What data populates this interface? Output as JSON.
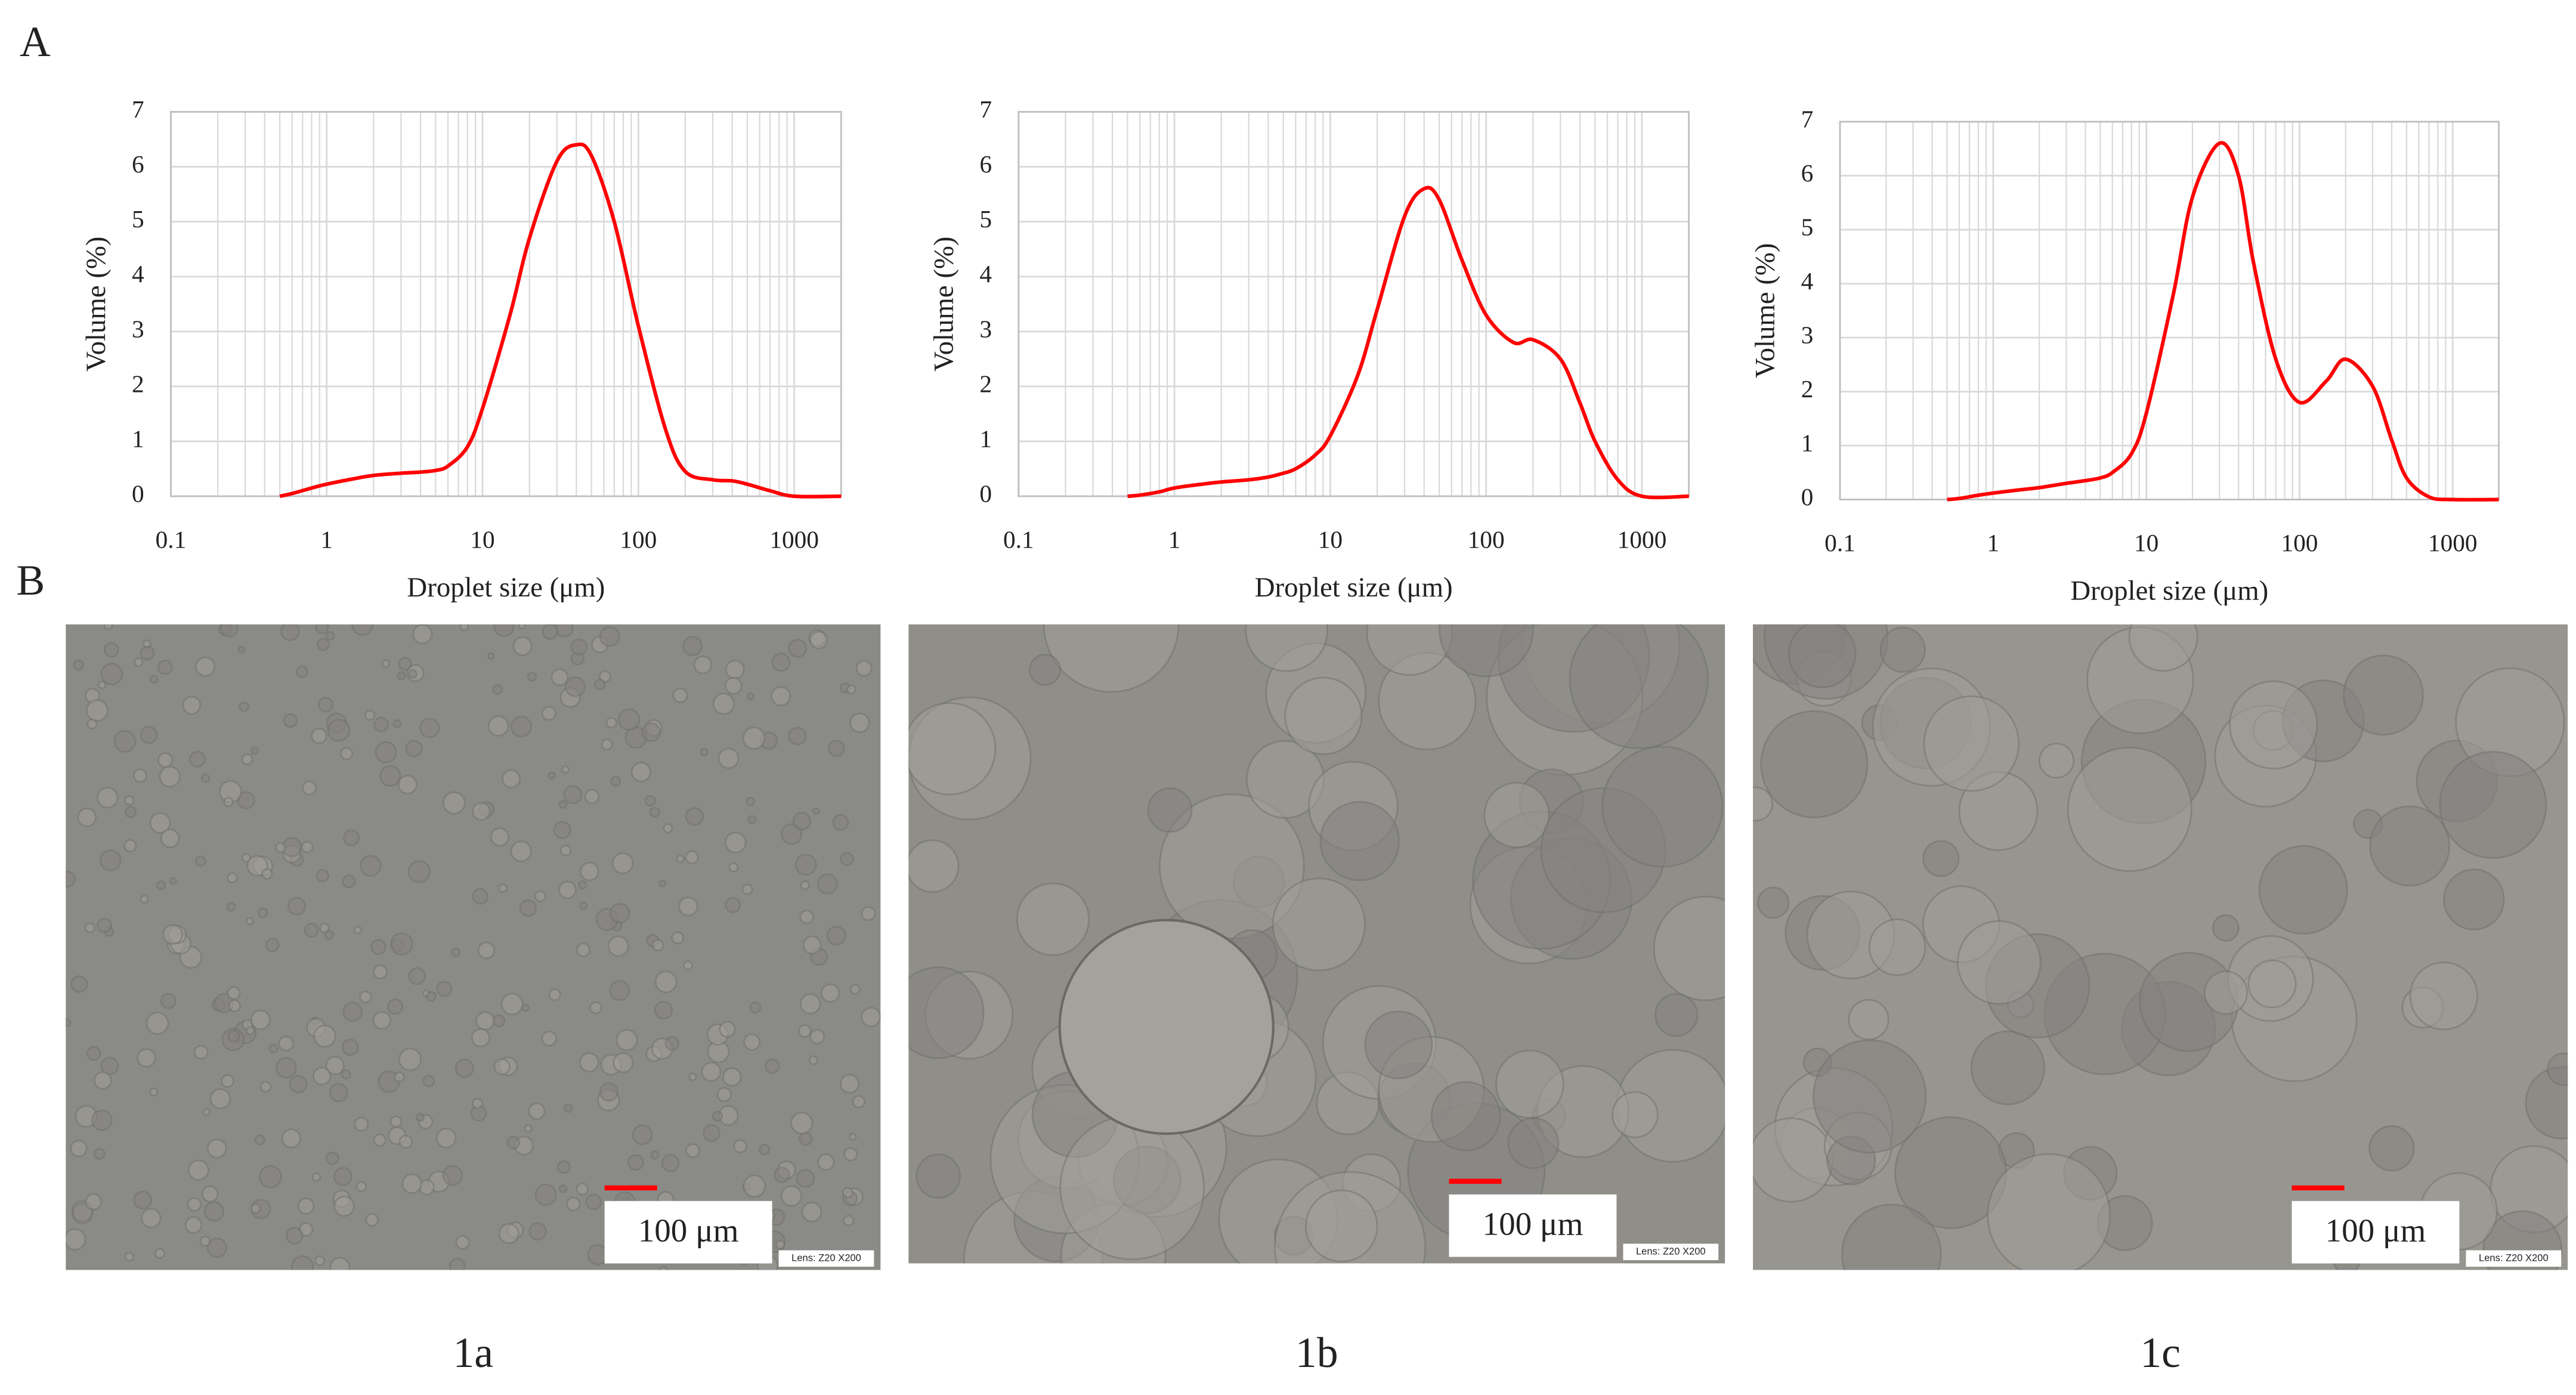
{
  "figure": {
    "panel_a": "A",
    "panel_b": "B",
    "micrographs": [
      {
        "label": "1a",
        "scale_bar": "100 μm",
        "lens": "Lens: Z20 X200"
      },
      {
        "label": "1b",
        "scale_bar": "100 μm",
        "lens": "Lens: Z20 X200"
      },
      {
        "label": "1c",
        "scale_bar": "100 μm",
        "lens": "Lens: Z20 X200"
      }
    ]
  },
  "chart_data": [
    {
      "type": "line",
      "color": "#ff0000",
      "x_label": "Droplet size (μm)",
      "y_label": "Volume (%)",
      "log_x": true,
      "grid": true,
      "xlim": [
        0.1,
        2000
      ],
      "ylim": [
        0,
        7
      ],
      "xticks": [
        0.1,
        1,
        10,
        100,
        1000
      ],
      "yticks": [
        0,
        1,
        2,
        3,
        4,
        5,
        6,
        7
      ],
      "x": [
        0.5,
        0.6,
        0.8,
        1,
        1.5,
        2,
        3,
        4,
        5,
        6,
        8,
        10,
        15,
        20,
        30,
        40,
        50,
        70,
        100,
        150,
        200,
        300,
        400,
        500,
        700,
        1000,
        2000
      ],
      "values": [
        0,
        0.05,
        0.15,
        0.22,
        0.32,
        0.38,
        0.42,
        0.44,
        0.47,
        0.55,
        0.9,
        1.6,
        3.3,
        4.7,
        6.1,
        6.4,
        6.2,
        5.0,
        3.1,
        1.2,
        0.45,
        0.3,
        0.28,
        0.22,
        0.1,
        0,
        0
      ]
    },
    {
      "type": "line",
      "color": "#ff0000",
      "x_label": "Droplet size (μm)",
      "y_label": "Volume (%)",
      "log_x": true,
      "grid": true,
      "xlim": [
        0.1,
        2000
      ],
      "ylim": [
        0,
        7
      ],
      "xticks": [
        0.1,
        1,
        10,
        100,
        1000
      ],
      "yticks": [
        0,
        1,
        2,
        3,
        4,
        5,
        6,
        7
      ],
      "x": [
        0.5,
        0.6,
        0.8,
        1,
        1.5,
        2,
        3,
        4,
        5,
        6,
        8,
        10,
        15,
        20,
        30,
        40,
        50,
        70,
        100,
        150,
        200,
        300,
        400,
        500,
        700,
        1000,
        2000
      ],
      "values": [
        0,
        0.02,
        0.08,
        0.15,
        0.22,
        0.26,
        0.3,
        0.35,
        0.42,
        0.5,
        0.75,
        1.1,
        2.2,
        3.4,
        5.1,
        5.6,
        5.4,
        4.3,
        3.3,
        2.8,
        2.85,
        2.5,
        1.7,
        1.0,
        0.3,
        0,
        0
      ]
    },
    {
      "type": "line",
      "color": "#ff0000",
      "x_label": "Droplet size (μm)",
      "y_label": "Volume (%)",
      "log_x": true,
      "grid": true,
      "xlim": [
        0.1,
        2000
      ],
      "ylim": [
        0,
        7
      ],
      "xticks": [
        0.1,
        1,
        10,
        100,
        1000
      ],
      "yticks": [
        0,
        1,
        2,
        3,
        4,
        5,
        6,
        7
      ],
      "x": [
        0.5,
        0.6,
        0.8,
        1,
        1.5,
        2,
        3,
        4,
        5,
        6,
        8,
        10,
        15,
        20,
        30,
        40,
        50,
        70,
        100,
        150,
        200,
        300,
        400,
        500,
        700,
        1000,
        2000
      ],
      "values": [
        0,
        0.02,
        0.08,
        0.12,
        0.18,
        0.22,
        0.3,
        0.35,
        0.4,
        0.5,
        0.85,
        1.6,
        3.8,
        5.6,
        6.6,
        6.0,
        4.4,
        2.6,
        1.8,
        2.2,
        2.6,
        2.1,
        1.1,
        0.4,
        0.05,
        0,
        0
      ]
    }
  ]
}
